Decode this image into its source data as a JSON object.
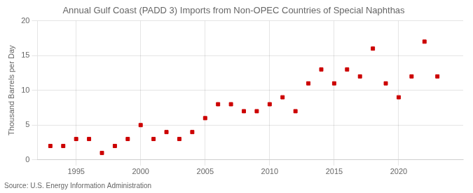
{
  "chart_data": {
    "type": "scatter",
    "title": "Annual Gulf Coast (PADD 3) Imports from Non-OPEC Countries of Special Naphthas",
    "ylabel": "Thousand Barrels per Day",
    "annotations": [
      "Source: U.S. Energy Information Administration"
    ],
    "x": [
      1993,
      1994,
      1995,
      1996,
      1997,
      1998,
      1999,
      2000,
      2001,
      2002,
      2003,
      2004,
      2005,
      2006,
      2007,
      2008,
      2009,
      2010,
      2011,
      2012,
      2013,
      2014,
      2015,
      2016,
      2017,
      2018,
      2019,
      2020,
      2021,
      2022,
      2023
    ],
    "values": [
      2,
      2,
      3,
      3,
      1,
      2,
      3,
      5,
      3,
      4,
      3,
      4,
      6,
      8,
      8,
      7,
      7,
      8,
      9,
      7,
      11,
      13,
      11,
      13,
      12,
      16,
      11,
      9,
      12,
      17,
      12
    ],
    "color": "#cc0000",
    "marker": "square",
    "xlim": [
      1992.0,
      2025.0
    ],
    "ylim": [
      0,
      20
    ],
    "xticks": [
      1995,
      2000,
      2005,
      2010,
      2015,
      2020
    ],
    "yticks": [
      0,
      5,
      10,
      15,
      20
    ],
    "grid": true
  }
}
